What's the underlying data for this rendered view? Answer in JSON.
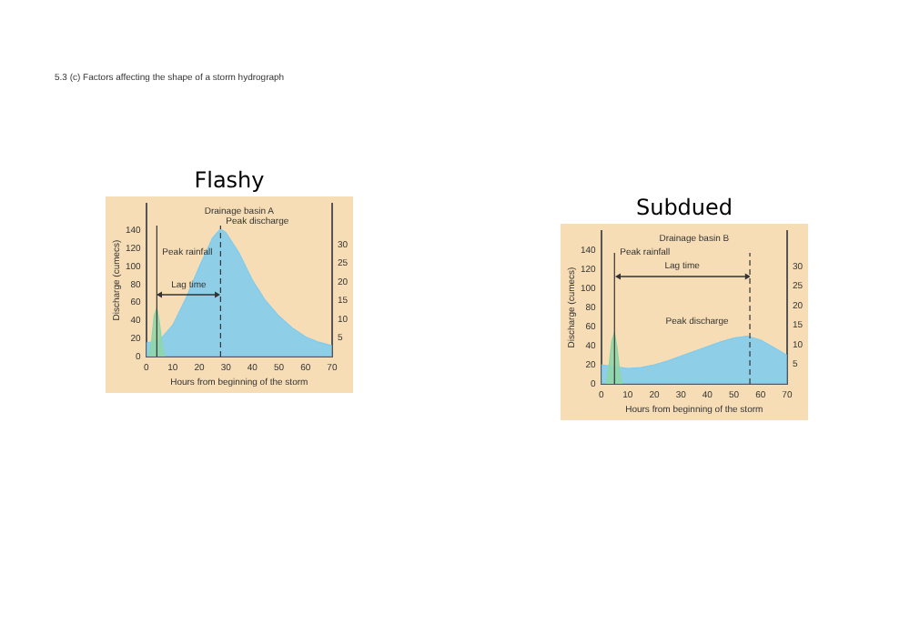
{
  "chart_data": [
    {
      "type": "area",
      "title": "Flashy",
      "subtitle": "Drainage basin A",
      "xlabel": "Hours from beginning of the storm",
      "ylabel": "Discharge (cumecs)",
      "annotations": [
        "5.3 (c) Factors affecting the shape of a storm hydrograph",
        {
          "text": "Peak discharge",
          "x": 28,
          "y": 142
        },
        {
          "text": "Peak rainfall",
          "x": 4,
          "y": 108
        },
        "Lag time"
      ],
      "series": [
        {
          "color": "#7ecbef",
          "x": [
            0,
            5,
            10,
            15,
            20,
            25,
            28,
            30,
            35,
            40,
            45,
            50,
            55,
            60,
            65,
            70
          ],
          "values": [
            15,
            18,
            35,
            65,
            100,
            132,
            142,
            138,
            115,
            85,
            62,
            45,
            32,
            22,
            16,
            12
          ]
        },
        {
          "color": "#8fd6a6",
          "axis": "y2",
          "x": [
            1,
            2,
            3,
            4,
            5,
            6,
            7
          ],
          "values": [
            0,
            4,
            11,
            13,
            9,
            3,
            0
          ]
        }
      ],
      "xlim": [
        0,
        70
      ],
      "xticks": [
        0,
        10,
        20,
        30,
        40,
        50,
        60,
        70
      ],
      "ylim": [
        0,
        170
      ],
      "yticks": [
        0,
        20,
        40,
        60,
        80,
        100,
        120,
        140
      ],
      "y2lim": [
        0,
        41
      ],
      "y2ticks": [
        5,
        10,
        15,
        20,
        25,
        30
      ],
      "ref_lines": [
        {
          "axis": "x",
          "value": 4,
          "line_style": "solid"
        },
        {
          "axis": "x",
          "value": 28,
          "line_style": "dashed"
        }
      ],
      "grid": false,
      "legend": false
    },
    {
      "type": "area",
      "title": "Subdued",
      "subtitle": "Drainage basin B",
      "xlabel": "Hours from beginning of the storm",
      "ylabel": "Discharge (cumecs)",
      "annotations": [
        {
          "text": "Peak discharge",
          "x": 50,
          "y": 58
        },
        {
          "text": "Peak rainfall",
          "x": 5,
          "y": 130
        },
        "Lag time"
      ],
      "series": [
        {
          "color": "#7ecbef",
          "x": [
            0,
            5,
            10,
            15,
            20,
            25,
            30,
            35,
            40,
            45,
            50,
            55,
            60,
            65,
            70
          ],
          "values": [
            20,
            18,
            16,
            17,
            20,
            24,
            29,
            34,
            39,
            44,
            48,
            50,
            46,
            38,
            30
          ]
        },
        {
          "color": "#8fd6a6",
          "axis": "y2",
          "x": [
            2,
            3,
            4,
            5,
            6,
            7,
            8
          ],
          "values": [
            0,
            5,
            11,
            13,
            9,
            3,
            0
          ]
        }
      ],
      "xlim": [
        0,
        70
      ],
      "xticks": [
        0,
        10,
        20,
        30,
        40,
        50,
        60,
        70
      ],
      "ylim": [
        0,
        160
      ],
      "yticks": [
        0,
        20,
        40,
        60,
        80,
        100,
        120,
        140
      ],
      "y2lim": [
        0,
        39
      ],
      "y2ticks": [
        5,
        10,
        15,
        20,
        25,
        30
      ],
      "ref_lines": [
        {
          "axis": "x",
          "value": 5,
          "line_style": "solid"
        },
        {
          "axis": "x",
          "value": 56,
          "line_style": "dashed"
        }
      ],
      "grid": false,
      "legend": false
    }
  ]
}
